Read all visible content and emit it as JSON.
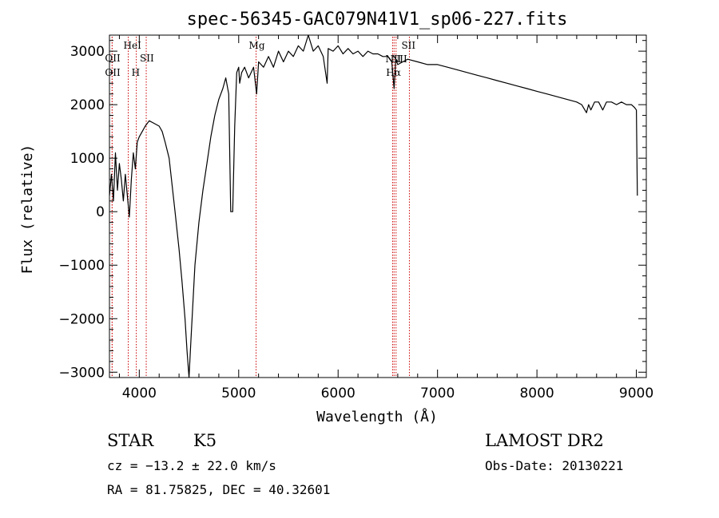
{
  "chart_data": {
    "type": "line",
    "title": "spec-56345-GAC079N41V1_sp06-227.fits",
    "xlabel": "Wavelength (Å)",
    "ylabel": "Flux (relative)",
    "xlim": [
      3700,
      9100
    ],
    "ylim": [
      -3100,
      3300
    ],
    "xticks": [
      4000,
      5000,
      6000,
      7000,
      8000,
      9000
    ],
    "yticks": [
      -3000,
      -2000,
      -1000,
      0,
      1000,
      2000,
      3000
    ],
    "xtick_labels": [
      "4000",
      "5000",
      "6000",
      "7000",
      "8000",
      "9000"
    ],
    "ytick_labels": [
      "−3000",
      "−2000",
      "−1000",
      "0",
      "1000",
      "2000",
      "3000"
    ],
    "line_color": "#000000",
    "marker_color": "#cc0000",
    "series": [
      {
        "x": [
          3700,
          3720,
          3740,
          3760,
          3780,
          3800,
          3820,
          3840,
          3860,
          3880,
          3900,
          3920,
          3940,
          3960,
          3980,
          4000,
          4030,
          4060,
          4100,
          4150,
          4200,
          4230,
          4260,
          4300,
          4330,
          4360,
          4400,
          4430,
          4460,
          4480,
          4500,
          4520,
          4540,
          4560,
          4600,
          4640,
          4680,
          4720,
          4760,
          4800,
          4840,
          4870,
          4900,
          4920,
          4940,
          4960,
          4980,
          5000,
          5010,
          5030,
          5060,
          5100,
          5150,
          5180,
          5200,
          5250,
          5300,
          5350,
          5400,
          5450,
          5500,
          5550,
          5600,
          5650,
          5700,
          5750,
          5800,
          5850,
          5890,
          5900,
          5950,
          6000,
          6050,
          6100,
          6150,
          6200,
          6250,
          6300,
          6350,
          6400,
          6450,
          6500,
          6540,
          6563,
          6580,
          6600,
          6650,
          6700,
          6800,
          6900,
          7000,
          7100,
          7200,
          7300,
          7400,
          7500,
          7600,
          7700,
          7800,
          7900,
          8000,
          8100,
          8200,
          8300,
          8400,
          8450,
          8498,
          8520,
          8542,
          8580,
          8620,
          8662,
          8700,
          8750,
          8800,
          8850,
          8900,
          8950,
          8980,
          9000,
          9010
        ],
        "y": [
          300,
          700,
          200,
          1100,
          400,
          900,
          600,
          200,
          700,
          300,
          -100,
          600,
          1100,
          800,
          1300,
          1400,
          1500,
          1600,
          1700,
          1650,
          1600,
          1500,
          1300,
          1000,
          500,
          0,
          -700,
          -1300,
          -2000,
          -2600,
          -3100,
          -2400,
          -1700,
          -1000,
          -200,
          400,
          900,
          1400,
          1800,
          2100,
          2300,
          2500,
          2200,
          0,
          0,
          1600,
          2600,
          2700,
          2400,
          2600,
          2700,
          2500,
          2700,
          2200,
          2800,
          2700,
          2900,
          2700,
          3000,
          2800,
          3000,
          2900,
          3100,
          3000,
          3300,
          3000,
          3100,
          2900,
          2400,
          3050,
          3000,
          3100,
          2950,
          3050,
          2950,
          3000,
          2900,
          3000,
          2950,
          2950,
          2900,
          2900,
          2800,
          2300,
          2850,
          2750,
          2800,
          2850,
          2800,
          2750,
          2750,
          2700,
          2650,
          2600,
          2550,
          2500,
          2450,
          2400,
          2350,
          2300,
          2250,
          2200,
          2150,
          2100,
          2050,
          2000,
          1850,
          2000,
          1900,
          2050,
          2050,
          1900,
          2050,
          2050,
          2000,
          2050,
          2000,
          2000,
          1950,
          1900,
          300
        ]
      }
    ],
    "markers": [
      {
        "name": "OII",
        "x": 3727
      },
      {
        "name": "OII",
        "x": 3727
      },
      {
        "name": "HeI",
        "x": 3889
      },
      {
        "name": "H",
        "x": 3970
      },
      {
        "name": "SII",
        "x": 4070
      },
      {
        "name": "Mg",
        "x": 5175
      },
      {
        "name": "NII",
        "x": 6548
      },
      {
        "name": "Hα",
        "x": 6563
      },
      {
        "name": "NII",
        "x": 6583
      },
      {
        "name": "SII",
        "x": 6717
      }
    ]
  },
  "info": {
    "object_class": "STAR",
    "subclass": "K5",
    "release": "LAMOST DR2",
    "redshift": "cz = −13.2 ± 22.0 km/s",
    "obs_date": "Obs-Date: 20130221",
    "coords": "RA =  81.75825, DEC =  40.32601"
  }
}
